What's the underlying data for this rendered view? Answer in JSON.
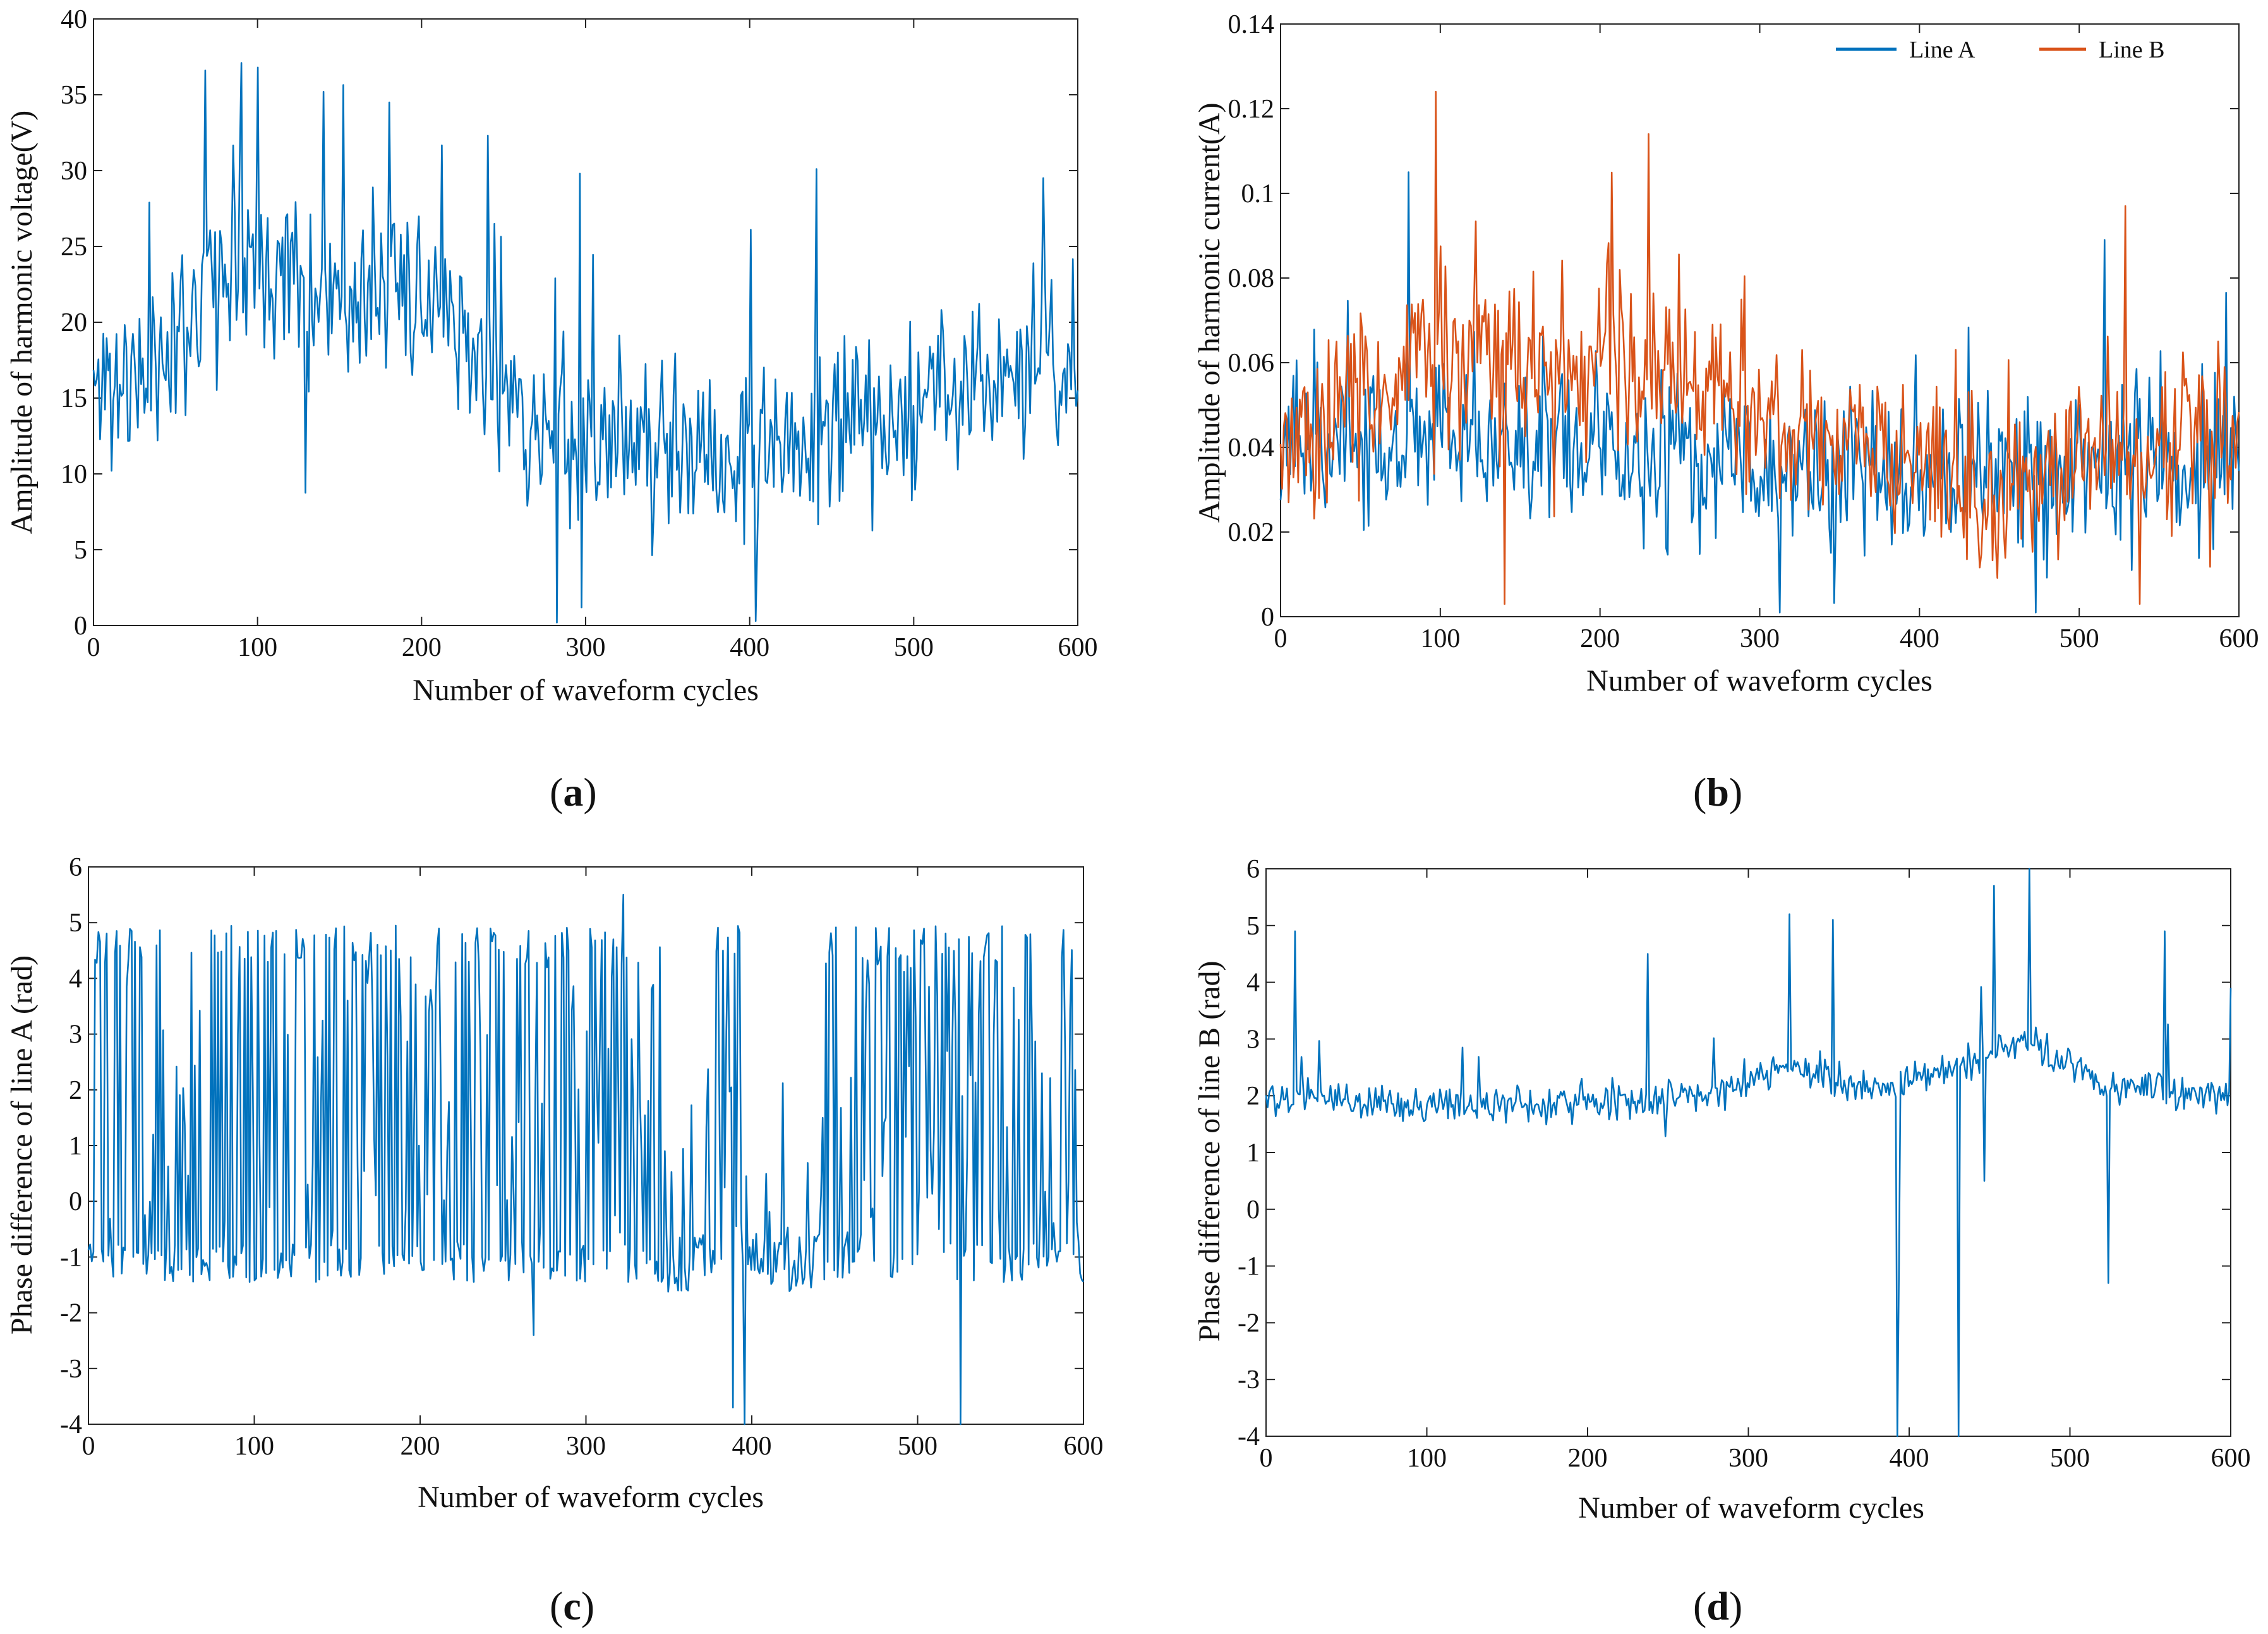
{
  "colors": {
    "line_a": "#0072BD",
    "line_b": "#D95319",
    "axis": "#222222"
  },
  "chart_data": [
    {
      "id": "a",
      "type": "line",
      "panel_label": "a",
      "xlabel": "Number of waveform cycles",
      "ylabel": "Amplitude of harmonic voltage(V)",
      "xlim": [
        0,
        600
      ],
      "ylim": [
        0,
        40
      ],
      "xticks": [
        0,
        100,
        200,
        300,
        400,
        500,
        600
      ],
      "yticks": [
        0,
        5,
        10,
        15,
        20,
        25,
        30,
        35,
        40
      ],
      "legend": null,
      "series": [
        {
          "name": "Line A",
          "color": "#0072BD",
          "model": {
            "samples": 600,
            "seed": 11,
            "noise": 5.2,
            "spike_prob": 0.03,
            "spike_size": 10,
            "anchors": [
              [
                0,
                16
              ],
              [
                30,
                16
              ],
              [
                60,
                21
              ],
              [
                100,
                25
              ],
              [
                140,
                22
              ],
              [
                200,
                21
              ],
              [
                240,
                17
              ],
              [
                280,
                12
              ],
              [
                330,
                12
              ],
              [
                380,
                11
              ],
              [
                420,
                12
              ],
              [
                500,
                14
              ],
              [
                540,
                17
              ],
              [
                600,
                17
              ]
            ],
            "clip": [
              0.2,
              37.2
            ],
            "events": [
              [
                68,
                36.6
              ],
              [
                90,
                37.1
              ],
              [
                100,
                36.8
              ],
              [
                140,
                35.2
              ],
              [
                180,
                34.5
              ],
              [
                240,
                32.3
              ],
              [
                296,
                29.8
              ],
              [
                297,
                1.2
              ],
              [
                403,
                0.3
              ],
              [
                440,
                30.1
              ],
              [
                400,
                26.1
              ]
            ]
          }
        }
      ]
    },
    {
      "id": "b",
      "type": "line",
      "panel_label": "b",
      "xlabel": "Number of waveform cycles",
      "ylabel": "Amplitude of harmonic current(A)",
      "xlim": [
        0,
        600
      ],
      "ylim": [
        0,
        0.14
      ],
      "xticks": [
        0,
        100,
        200,
        300,
        400,
        500,
        600
      ],
      "yticks": [
        0,
        0.02,
        0.04,
        0.06,
        0.08,
        0.1,
        0.12,
        0.14
      ],
      "legend": {
        "placement": "top-right",
        "entries": [
          "Line A",
          "Line B"
        ]
      },
      "series": [
        {
          "name": "Line A",
          "color": "#0072BD",
          "model": {
            "samples": 600,
            "seed": 23,
            "noise": 0.016,
            "spike_prob": 0.03,
            "spike_size": 0.025,
            "anchors": [
              [
                0,
                0.04
              ],
              [
                100,
                0.042
              ],
              [
                200,
                0.04
              ],
              [
                300,
                0.036
              ],
              [
                400,
                0.035
              ],
              [
                500,
                0.036
              ],
              [
                600,
                0.036
              ]
            ],
            "clip": [
              0.001,
              0.12
            ],
            "events": [
              [
                80,
                0.105
              ],
              [
                515,
                0.089
              ],
              [
                472,
                0.001
              ]
            ]
          }
        },
        {
          "name": "Line B",
          "color": "#D95319",
          "model": {
            "samples": 600,
            "seed": 37,
            "noise": 0.017,
            "spike_prob": 0.04,
            "spike_size": 0.03,
            "anchors": [
              [
                0,
                0.04
              ],
              [
                40,
                0.05
              ],
              [
                100,
                0.062
              ],
              [
                160,
                0.058
              ],
              [
                230,
                0.06
              ],
              [
                300,
                0.045
              ],
              [
                380,
                0.04
              ],
              [
                440,
                0.03
              ],
              [
                520,
                0.04
              ],
              [
                600,
                0.045
              ]
            ],
            "clip": [
              0.003,
              0.125
            ],
            "events": [
              [
                97,
                0.124
              ],
              [
                230,
                0.114
              ],
              [
                140,
                0.003
              ],
              [
                528,
                0.097
              ]
            ]
          }
        }
      ]
    },
    {
      "id": "c",
      "type": "line",
      "panel_label": "c",
      "xlabel": "Number of waveform cycles",
      "ylabel": "Phase difference of line A (rad)",
      "xlim": [
        0,
        600
      ],
      "ylim": [
        -4,
        6
      ],
      "xticks": [
        0,
        100,
        200,
        300,
        400,
        500,
        600
      ],
      "yticks": [
        -4,
        -3,
        -2,
        -1,
        0,
        1,
        2,
        3,
        4,
        5,
        6
      ],
      "legend": null,
      "series": [
        {
          "name": "Line A",
          "color": "#0072BD",
          "model": {
            "mode": "bimodal",
            "samples": 600,
            "seed": 53,
            "low": -1.1,
            "high": 4.6,
            "low_noise": 0.35,
            "high_noise": 0.35,
            "mid_prob": 0.35,
            "quiet_ranges": [
              [
                345,
                370
              ],
              [
                395,
                440
              ]
            ],
            "clip": [
              -4,
              5.5
            ],
            "events": [
              [
                322,
                5.5
              ],
              [
                388,
                -3.7
              ],
              [
                395,
                -4.0
              ],
              [
                525,
                -4.0
              ],
              [
                268,
                -2.4
              ]
            ]
          }
        }
      ]
    },
    {
      "id": "d",
      "type": "line",
      "panel_label": "d",
      "xlabel": "Number of waveform cycles",
      "ylabel": "Phase difference of line B (rad)",
      "xlim": [
        0,
        600
      ],
      "ylim": [
        -4,
        6
      ],
      "xticks": [
        0,
        100,
        200,
        300,
        400,
        500,
        600
      ],
      "yticks": [
        -4,
        -3,
        -2,
        -1,
        0,
        1,
        2,
        3,
        4,
        5,
        6
      ],
      "legend": null,
      "series": [
        {
          "name": "Line B",
          "color": "#0072BD",
          "model": {
            "samples": 600,
            "seed": 71,
            "noise": 0.28,
            "spike_prob": 0.02,
            "spike_size": 1.1,
            "anchors": [
              [
                0,
                2.0
              ],
              [
                100,
                1.8
              ],
              [
                200,
                1.9
              ],
              [
                280,
                2.1
              ],
              [
                330,
                2.5
              ],
              [
                380,
                2.1
              ],
              [
                440,
                2.6
              ],
              [
                470,
                3.0
              ],
              [
                520,
                2.2
              ],
              [
                600,
                2.0
              ]
            ],
            "clip": [
              -4,
              6
            ],
            "events": [
              [
                18,
                4.9
              ],
              [
                237,
                4.5
              ],
              [
                325,
                5.2
              ],
              [
                352,
                5.1
              ],
              [
                392,
                -4.0
              ],
              [
                393,
                -1.0
              ],
              [
                430,
                -4.0
              ],
              [
                446,
                0.5
              ],
              [
                452,
                5.7
              ],
              [
                474,
                6.0
              ],
              [
                523,
                -1.3
              ],
              [
                558,
                4.9
              ],
              [
                599,
                3.9
              ]
            ]
          }
        }
      ]
    }
  ]
}
